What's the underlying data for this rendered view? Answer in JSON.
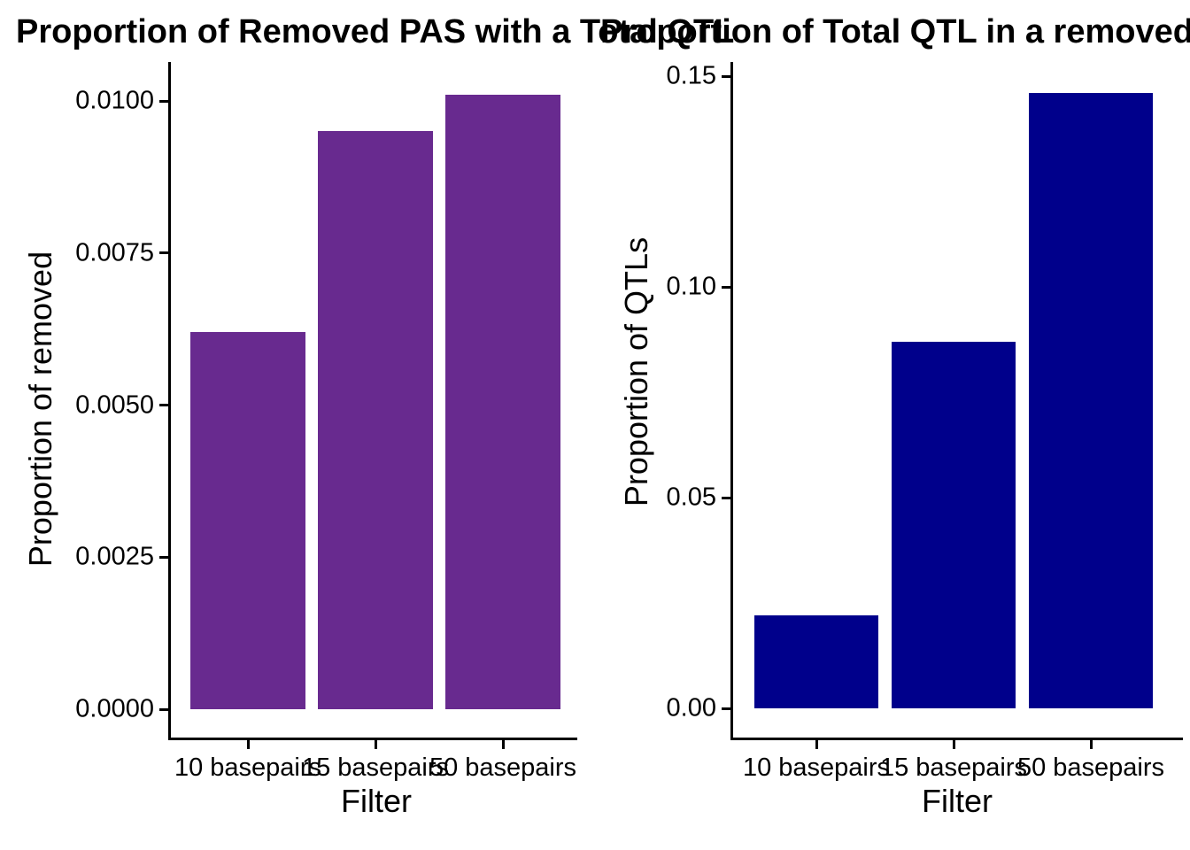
{
  "chart_data": [
    {
      "type": "bar",
      "title": "Proportion of Removed PAS with a Total QTL",
      "xlabel": "Filter",
      "ylabel": "Proportion of removed",
      "categories": [
        "10 basepairs",
        "15 basepairs",
        "50 basepairs"
      ],
      "values": [
        0.0062,
        0.0095,
        0.0101
      ],
      "yticks": [
        "0.0000",
        "0.0025",
        "0.0050",
        "0.0075",
        "0.0100"
      ],
      "ytick_values": [
        0,
        0.0025,
        0.005,
        0.0075,
        0.01
      ],
      "ylim": [
        0,
        0.0106
      ],
      "bar_color": "#682A8F",
      "axis_color": "#000000",
      "grid": false,
      "legend": "none"
    },
    {
      "type": "bar",
      "title": "Proportion of Total QTL in a removed",
      "xlabel": "Filter",
      "ylabel": "Proportion of QTLs",
      "categories": [
        "10 basepairs",
        "15 basepairs",
        "50 basepairs"
      ],
      "values": [
        0.022,
        0.087,
        0.146
      ],
      "yticks": [
        "0.00",
        "0.05",
        "0.10",
        "0.15"
      ],
      "ytick_values": [
        0,
        0.05,
        0.1,
        0.15
      ],
      "ylim": [
        0,
        0.153
      ],
      "bar_color": "#00008B",
      "axis_color": "#000000",
      "grid": false,
      "legend": "none"
    }
  ]
}
